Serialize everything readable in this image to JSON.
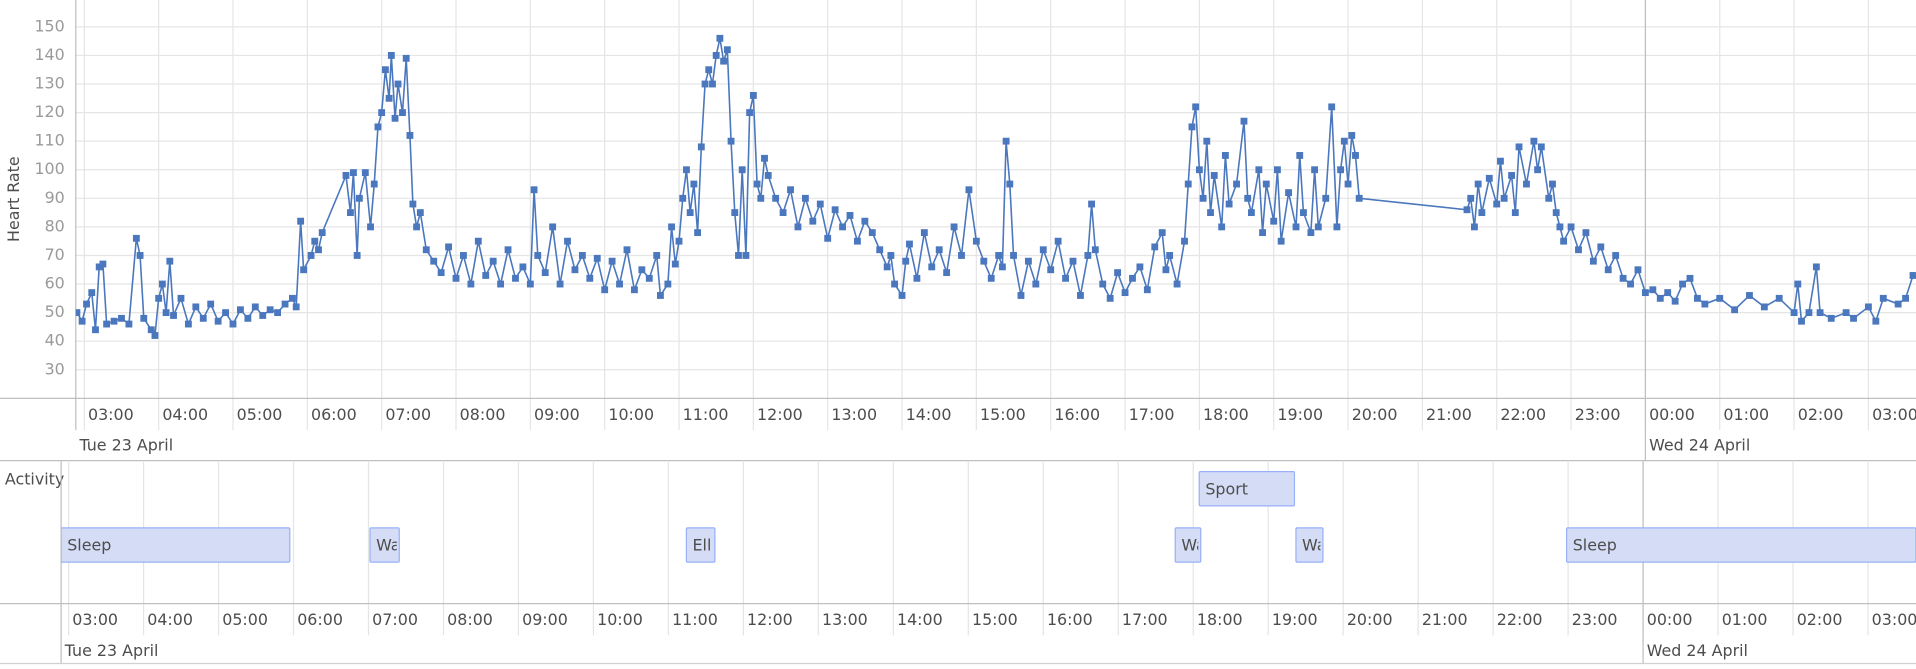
{
  "chart_data": [
    {
      "type": "line",
      "y_label": "Heart Rate",
      "color": "#4a77bd",
      "marker": "square",
      "grid": true,
      "xlim": [
        2.885,
        27.64
      ],
      "ylim": [
        20,
        159.4
      ],
      "yticks": [
        30,
        40,
        50,
        60,
        70,
        80,
        90,
        100,
        110,
        120,
        130,
        140,
        150
      ],
      "xticks": [
        {
          "value": 3,
          "label": "03:00"
        },
        {
          "value": 4,
          "label": "04:00"
        },
        {
          "value": 5,
          "label": "05:00"
        },
        {
          "value": 6,
          "label": "06:00"
        },
        {
          "value": 7,
          "label": "07:00"
        },
        {
          "value": 8,
          "label": "08:00"
        },
        {
          "value": 9,
          "label": "09:00"
        },
        {
          "value": 10,
          "label": "10:00"
        },
        {
          "value": 11,
          "label": "11:00"
        },
        {
          "value": 12,
          "label": "12:00"
        },
        {
          "value": 13,
          "label": "13:00"
        },
        {
          "value": 14,
          "label": "14:00"
        },
        {
          "value": 15,
          "label": "15:00"
        },
        {
          "value": 16,
          "label": "16:00"
        },
        {
          "value": 17,
          "label": "17:00"
        },
        {
          "value": 18,
          "label": "18:00"
        },
        {
          "value": 19,
          "label": "19:00"
        },
        {
          "value": 20,
          "label": "20:00"
        },
        {
          "value": 21,
          "label": "21:00"
        },
        {
          "value": 22,
          "label": "22:00"
        },
        {
          "value": 23,
          "label": "23:00"
        },
        {
          "value": 24,
          "label": "00:00"
        },
        {
          "value": 25,
          "label": "01:00"
        },
        {
          "value": 26,
          "label": "02:00"
        },
        {
          "value": 27,
          "label": "03:00"
        }
      ],
      "date_labels": [
        {
          "value": 0,
          "label": "Tue 23 April"
        },
        {
          "value": 24,
          "label": "Wed 24 April"
        }
      ],
      "x": [
        2.9,
        2.97,
        3.03,
        3.1,
        3.15,
        3.2,
        3.25,
        3.3,
        3.4,
        3.5,
        3.6,
        3.7,
        3.75,
        3.8,
        3.9,
        3.95,
        4.0,
        4.05,
        4.1,
        4.15,
        4.2,
        4.3,
        4.4,
        4.5,
        4.6,
        4.7,
        4.8,
        4.9,
        5.0,
        5.1,
        5.2,
        5.3,
        5.4,
        5.5,
        5.6,
        5.7,
        5.8,
        5.85,
        5.91,
        5.95,
        6.05,
        6.1,
        6.15,
        6.2,
        6.52,
        6.58,
        6.62,
        6.67,
        6.7,
        6.78,
        6.85,
        6.9,
        6.95,
        7.0,
        7.05,
        7.1,
        7.13,
        7.18,
        7.22,
        7.28,
        7.33,
        7.38,
        7.42,
        7.47,
        7.52,
        7.6,
        7.7,
        7.8,
        7.9,
        8.0,
        8.1,
        8.2,
        8.3,
        8.4,
        8.5,
        8.6,
        8.7,
        8.8,
        8.9,
        9.0,
        9.05,
        9.1,
        9.2,
        9.3,
        9.4,
        9.5,
        9.6,
        9.7,
        9.8,
        9.9,
        10.0,
        10.1,
        10.2,
        10.3,
        10.4,
        10.5,
        10.6,
        10.7,
        10.75,
        10.85,
        10.9,
        10.95,
        11.0,
        11.05,
        11.1,
        11.15,
        11.2,
        11.25,
        11.3,
        11.35,
        11.4,
        11.45,
        11.5,
        11.55,
        11.6,
        11.65,
        11.7,
        11.75,
        11.8,
        11.85,
        11.9,
        11.95,
        12.0,
        12.05,
        12.1,
        12.15,
        12.2,
        12.3,
        12.4,
        12.5,
        12.6,
        12.7,
        12.8,
        12.9,
        13.0,
        13.1,
        13.2,
        13.3,
        13.4,
        13.5,
        13.6,
        13.7,
        13.8,
        13.85,
        13.9,
        14.0,
        14.05,
        14.1,
        14.2,
        14.3,
        14.4,
        14.5,
        14.6,
        14.7,
        14.8,
        14.9,
        15.0,
        15.1,
        15.2,
        15.3,
        15.35,
        15.4,
        15.45,
        15.5,
        15.6,
        15.7,
        15.8,
        15.9,
        16.0,
        16.1,
        16.2,
        16.3,
        16.4,
        16.5,
        16.55,
        16.6,
        16.7,
        16.8,
        16.9,
        17.0,
        17.1,
        17.2,
        17.3,
        17.4,
        17.5,
        17.55,
        17.6,
        17.7,
        17.8,
        17.85,
        17.9,
        17.95,
        18.0,
        18.05,
        18.1,
        18.15,
        18.2,
        18.3,
        18.35,
        18.4,
        18.5,
        18.6,
        18.65,
        18.7,
        18.8,
        18.85,
        18.9,
        19.0,
        19.05,
        19.1,
        19.2,
        19.3,
        19.35,
        19.4,
        19.5,
        19.55,
        19.6,
        19.7,
        19.78,
        19.85,
        19.9,
        19.95,
        20.0,
        20.05,
        20.1,
        20.15,
        21.6,
        21.65,
        21.7,
        21.75,
        21.8,
        21.9,
        22.0,
        22.05,
        22.1,
        22.2,
        22.25,
        22.3,
        22.4,
        22.5,
        22.55,
        22.6,
        22.7,
        22.75,
        22.8,
        22.85,
        22.9,
        23.0,
        23.1,
        23.2,
        23.3,
        23.4,
        23.5,
        23.6,
        23.7,
        23.8,
        23.9,
        24.0,
        24.1,
        24.2,
        24.3,
        24.4,
        24.5,
        24.6,
        24.7,
        24.8,
        25.0,
        25.2,
        25.4,
        25.6,
        25.8,
        26.0,
        26.05,
        26.1,
        26.2,
        26.3,
        26.35,
        26.5,
        26.7,
        26.8,
        27.0,
        27.1,
        27.2,
        27.4,
        27.5,
        27.6
      ],
      "values": [
        50,
        47,
        53,
        57,
        44,
        66,
        67,
        46,
        47,
        48,
        46,
        76,
        70,
        48,
        44,
        42,
        55,
        60,
        50,
        68,
        49,
        55,
        46,
        52,
        48,
        53,
        47,
        50,
        46,
        51,
        48,
        52,
        49,
        51,
        50,
        53,
        55,
        52,
        82,
        65,
        70,
        75,
        72,
        78,
        98,
        85,
        99,
        70,
        90,
        99,
        80,
        95,
        115,
        120,
        135,
        125,
        140,
        118,
        130,
        120,
        139,
        112,
        88,
        80,
        85,
        72,
        68,
        64,
        73,
        62,
        70,
        60,
        75,
        63,
        68,
        60,
        72,
        62,
        66,
        60,
        93,
        70,
        64,
        80,
        60,
        75,
        65,
        70,
        62,
        69,
        58,
        68,
        60,
        72,
        58,
        65,
        62,
        70,
        56,
        60,
        80,
        67,
        75,
        90,
        100,
        85,
        95,
        78,
        108,
        130,
        135,
        130,
        140,
        146,
        138,
        142,
        110,
        85,
        70,
        100,
        70,
        120,
        126,
        95,
        90,
        104,
        98,
        90,
        85,
        93,
        80,
        90,
        82,
        88,
        76,
        86,
        80,
        84,
        75,
        82,
        78,
        72,
        66,
        70,
        60,
        56,
        68,
        74,
        62,
        78,
        66,
        72,
        64,
        80,
        70,
        93,
        75,
        68,
        62,
        70,
        66,
        110,
        95,
        70,
        56,
        68,
        60,
        72,
        65,
        75,
        62,
        68,
        56,
        70,
        88,
        72,
        60,
        55,
        64,
        57,
        62,
        66,
        58,
        73,
        78,
        65,
        70,
        60,
        75,
        95,
        115,
        122,
        100,
        90,
        110,
        85,
        98,
        80,
        105,
        88,
        95,
        117,
        90,
        85,
        100,
        78,
        95,
        82,
        100,
        75,
        92,
        80,
        105,
        85,
        78,
        100,
        80,
        90,
        122,
        80,
        100,
        110,
        95,
        112,
        105,
        90,
        86,
        90,
        80,
        95,
        85,
        97,
        88,
        103,
        90,
        98,
        85,
        108,
        95,
        110,
        100,
        108,
        90,
        95,
        85,
        80,
        75,
        80,
        72,
        78,
        68,
        73,
        65,
        70,
        62,
        60,
        65,
        57,
        58,
        55,
        57,
        54,
        60,
        62,
        55,
        53,
        55,
        51,
        56,
        52,
        55,
        50,
        60,
        47,
        50,
        66,
        50,
        48,
        50,
        48,
        52,
        47,
        55,
        53,
        55,
        63
      ]
    },
    {
      "type": "gantt",
      "y_label": "Activity",
      "color": "#d5ddf6",
      "border_color": "#97b0f8",
      "grid": true,
      "xlim": [
        2.9,
        27.64
      ],
      "xticks": [
        {
          "value": 3,
          "label": "03:00"
        },
        {
          "value": 4,
          "label": "04:00"
        },
        {
          "value": 5,
          "label": "05:00"
        },
        {
          "value": 6,
          "label": "06:00"
        },
        {
          "value": 7,
          "label": "07:00"
        },
        {
          "value": 8,
          "label": "08:00"
        },
        {
          "value": 9,
          "label": "09:00"
        },
        {
          "value": 10,
          "label": "10:00"
        },
        {
          "value": 11,
          "label": "11:00"
        },
        {
          "value": 12,
          "label": "12:00"
        },
        {
          "value": 13,
          "label": "13:00"
        },
        {
          "value": 14,
          "label": "14:00"
        },
        {
          "value": 15,
          "label": "15:00"
        },
        {
          "value": 16,
          "label": "16:00"
        },
        {
          "value": 17,
          "label": "17:00"
        },
        {
          "value": 18,
          "label": "18:00"
        },
        {
          "value": 19,
          "label": "19:00"
        },
        {
          "value": 20,
          "label": "20:00"
        },
        {
          "value": 21,
          "label": "21:00"
        },
        {
          "value": 22,
          "label": "22:00"
        },
        {
          "value": 23,
          "label": "23:00"
        },
        {
          "value": 24,
          "label": "00:00"
        },
        {
          "value": 25,
          "label": "01:00"
        },
        {
          "value": 26,
          "label": "02:00"
        },
        {
          "value": 27,
          "label": "03:00"
        }
      ],
      "date_labels": [
        {
          "value": 0,
          "label": "Tue 23 April"
        },
        {
          "value": 24,
          "label": "Wed 24 April"
        }
      ],
      "tasks": [
        {
          "label": "Sleep",
          "start": 2.9,
          "end": 5.95
        },
        {
          "label": "Wa",
          "start": 7.02,
          "end": 7.41
        },
        {
          "label": "Elli",
          "start": 11.24,
          "end": 11.62
        },
        {
          "label": "Wa",
          "start": 17.76,
          "end": 18.1
        },
        {
          "label": "Sport",
          "start": 18.08,
          "end": 19.35
        },
        {
          "label": "Wa",
          "start": 19.37,
          "end": 19.73
        },
        {
          "label": "Sleep",
          "start": 22.98,
          "end": 27.64
        }
      ]
    }
  ]
}
